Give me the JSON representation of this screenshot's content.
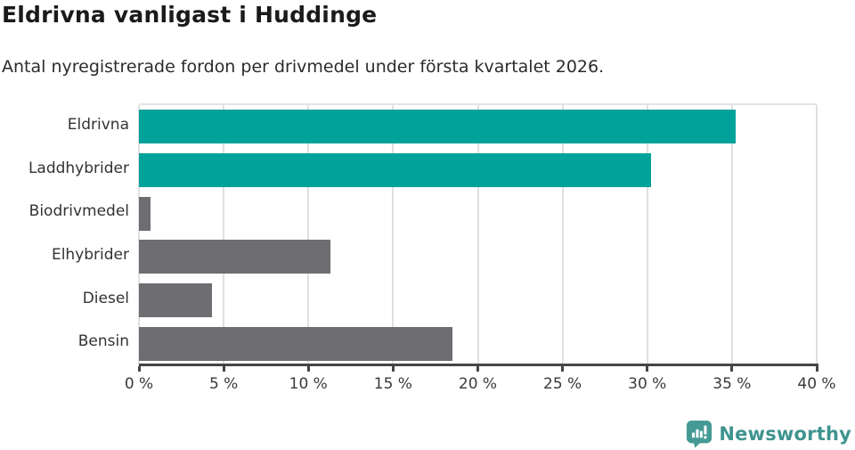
{
  "title": "Eldrivna vanligast i Huddinge",
  "subtitle": "Antal nyregistrerade fordon per drivmedel under första kvartalet 2026.",
  "chart_data": {
    "type": "bar",
    "orientation": "horizontal",
    "categories": [
      "Eldrivna",
      "Laddhybrider",
      "Biodrivmedel",
      "Elhybrider",
      "Diesel",
      "Bensin"
    ],
    "values": [
      35.2,
      30.2,
      0.7,
      11.3,
      4.3,
      18.5
    ],
    "unit": "%",
    "xlim": [
      0,
      40
    ],
    "x_tick_step": 5,
    "x_tick_labels": [
      "0 %",
      "5 %",
      "10 %",
      "15 %",
      "20 %",
      "25 %",
      "30 %",
      "35 %",
      "40 %"
    ],
    "bar_colors": [
      "#00a29a",
      "#00a29a",
      "#6d6d72",
      "#6d6d72",
      "#6d6d72",
      "#6d6d72"
    ],
    "highlight_color": "#00a29a",
    "default_color": "#6d6d72",
    "grid": true,
    "gridline_color": "#e0e0e0",
    "axis_color": "#454545",
    "legend": "none"
  },
  "branding": {
    "logo_text": "Newsworthy",
    "logo_text_color": "#3f948f",
    "logo_icon": "speech-bubble-bar-chart-icon",
    "logo_icon_color": "#459a95"
  }
}
